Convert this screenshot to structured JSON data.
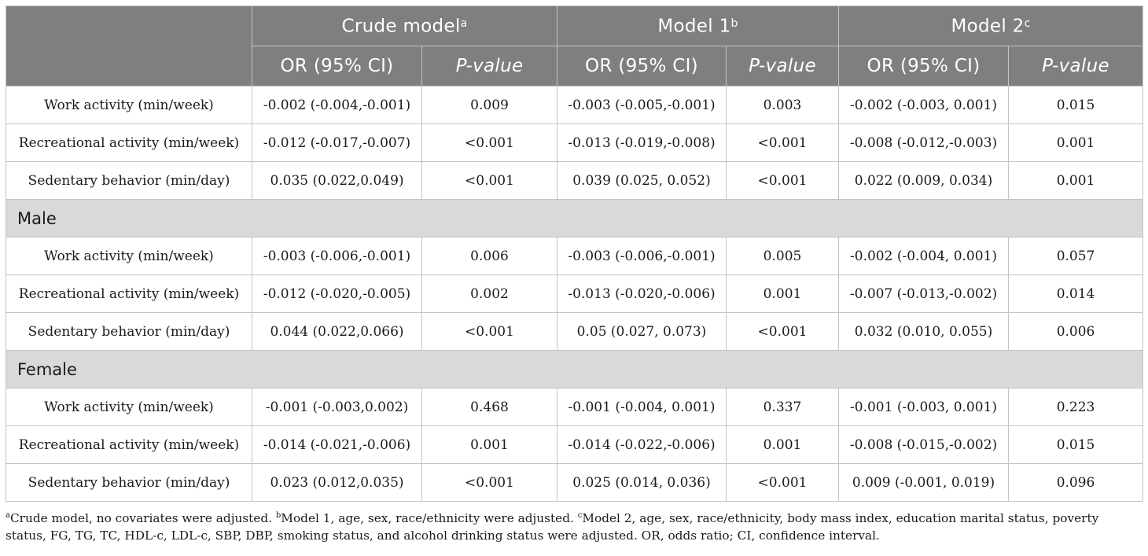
{
  "header": {
    "groups": [
      {
        "label": "Crude model",
        "sup": "a"
      },
      {
        "label": "Model 1",
        "sup": "b"
      },
      {
        "label": "Model 2",
        "sup": "c"
      }
    ],
    "or_label": "OR (95% CI)",
    "p_label": "P-value"
  },
  "sections": [
    {
      "title": "",
      "rows": [
        {
          "label": "Work activity (min/week)",
          "crude_or": "-0.002 (-0.004,-0.001)",
          "crude_p": "0.009",
          "m1_or": "-0.003 (-0.005,-0.001)",
          "m1_p": "0.003",
          "m2_or": "-0.002 (-0.003, 0.001)",
          "m2_p": "0.015"
        },
        {
          "label": "Recreational activity (min/week)",
          "crude_or": "-0.012 (-0.017,-0.007)",
          "crude_p": "<0.001",
          "m1_or": "-0.013 (-0.019,-0.008)",
          "m1_p": "<0.001",
          "m2_or": "-0.008 (-0.012,-0.003)",
          "m2_p": "0.001"
        },
        {
          "label": "Sedentary behavior (min/day)",
          "crude_or": "0.035 (0.022,0.049)",
          "crude_p": "<0.001",
          "m1_or": "0.039 (0.025, 0.052)",
          "m1_p": "<0.001",
          "m2_or": "0.022 (0.009, 0.034)",
          "m2_p": "0.001"
        }
      ]
    },
    {
      "title": "Male",
      "rows": [
        {
          "label": "Work activity (min/week)",
          "crude_or": "-0.003 (-0.006,-0.001)",
          "crude_p": "0.006",
          "m1_or": "-0.003 (-0.006,-0.001)",
          "m1_p": "0.005",
          "m2_or": "-0.002 (-0.004, 0.001)",
          "m2_p": "0.057"
        },
        {
          "label": "Recreational activity (min/week)",
          "crude_or": "-0.012 (-0.020,-0.005)",
          "crude_p": "0.002",
          "m1_or": "-0.013 (-0.020,-0.006)",
          "m1_p": "0.001",
          "m2_or": "-0.007 (-0.013,-0.002)",
          "m2_p": "0.014"
        },
        {
          "label": "Sedentary behavior (min/day)",
          "crude_or": "0.044 (0.022,0.066)",
          "crude_p": "<0.001",
          "m1_or": "0.05 (0.027, 0.073)",
          "m1_p": "<0.001",
          "m2_or": "0.032 (0.010, 0.055)",
          "m2_p": "0.006"
        }
      ]
    },
    {
      "title": "Female",
      "rows": [
        {
          "label": "Work activity (min/week)",
          "crude_or": "-0.001 (-0.003,0.002)",
          "crude_p": "0.468",
          "m1_or": "-0.001 (-0.004, 0.001)",
          "m1_p": "0.337",
          "m2_or": "-0.001 (-0.003, 0.001)",
          "m2_p": "0.223"
        },
        {
          "label": "Recreational activity (min/week)",
          "crude_or": "-0.014 (-0.021,-0.006)",
          "crude_p": "0.001",
          "m1_or": "-0.014 (-0.022,-0.006)",
          "m1_p": "0.001",
          "m2_or": "-0.008 (-0.015,-0.002)",
          "m2_p": "0.015"
        },
        {
          "label": "Sedentary behavior (min/day)",
          "crude_or": "0.023 (0.012,0.035)",
          "crude_p": "<0.001",
          "m1_or": "0.025 (0.014, 0.036)",
          "m1_p": "<0.001",
          "m2_or": "0.009 (-0.001, 0.019)",
          "m2_p": "0.096"
        }
      ]
    }
  ],
  "footnote": {
    "a_mark": "a",
    "a_text": "Crude model, no covariates were adjusted. ",
    "b_mark": "b",
    "b_text": "Model 1, age, sex, race/ethnicity were adjusted. ",
    "c_mark": "c",
    "c_text": "Model 2, age, sex, race/ethnicity, body mass index, education marital status, poverty status, FG, TG, TC, HDL-c, LDL-c, SBP, DBP, smoking status, and alcohol drinking status were adjusted. OR, odds ratio; CI, confidence interval."
  },
  "colors": {
    "header_bg": "#7f7f7f",
    "group_bg": "#d9d9d9",
    "border": "#c4c4c4"
  }
}
